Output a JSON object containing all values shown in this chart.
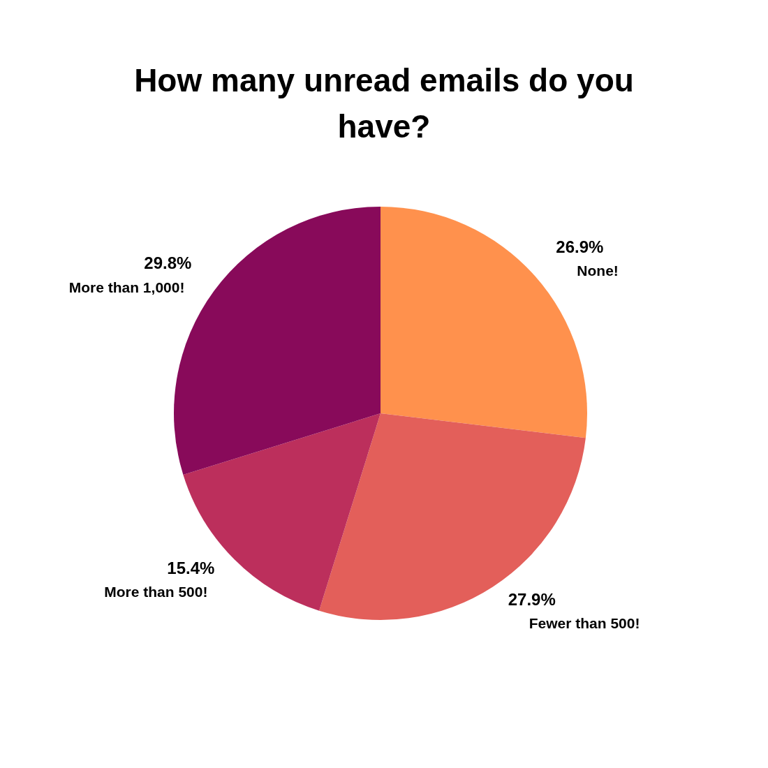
{
  "chart_data": {
    "type": "pie",
    "title": "How many unread emails do you have?",
    "categories": [
      "None!",
      "Fewer than 500!",
      "More than 500!",
      "More than 1,000!"
    ],
    "values": [
      26.9,
      27.9,
      15.4,
      29.8
    ],
    "value_labels": [
      "26.9%",
      "27.9%",
      "15.4%",
      "29.8%"
    ],
    "colors": [
      "#ff914d",
      "#e35f5a",
      "#bc2f5c",
      "#880a5a"
    ],
    "legend": false
  }
}
